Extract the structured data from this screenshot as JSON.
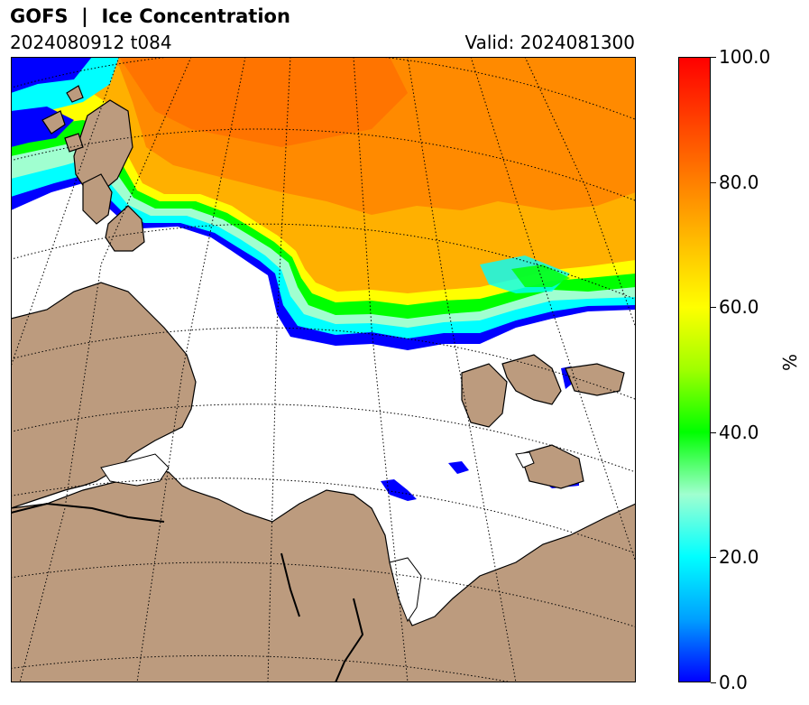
{
  "header": {
    "title": "GOFS  |  Ice Concentration",
    "run": "2024080912 t084",
    "valid": "Valid: 2024081300"
  },
  "colorbar": {
    "unit": "%",
    "ticks": [
      "0.0",
      "20.0",
      "40.0",
      "60.0",
      "80.0",
      "100.0"
    ],
    "range": [
      0,
      100
    ],
    "colormap_stops": [
      {
        "value": 0,
        "color": "#0000ff"
      },
      {
        "value": 10,
        "color": "#00a0ff"
      },
      {
        "value": 20,
        "color": "#00ffff"
      },
      {
        "value": 30,
        "color": "#a0ffd0"
      },
      {
        "value": 40,
        "color": "#00ff00"
      },
      {
        "value": 50,
        "color": "#a0ff00"
      },
      {
        "value": 60,
        "color": "#ffff00"
      },
      {
        "value": 70,
        "color": "#ffc000"
      },
      {
        "value": 80,
        "color": "#ff8000"
      },
      {
        "value": 90,
        "color": "#ff4000"
      },
      {
        "value": 100,
        "color": "#ff0000"
      }
    ]
  },
  "map": {
    "land_color": "#bc9b7e",
    "ocean_color": "#ffffff",
    "coastline_color": "#000000",
    "graticule_style": "dotted"
  }
}
